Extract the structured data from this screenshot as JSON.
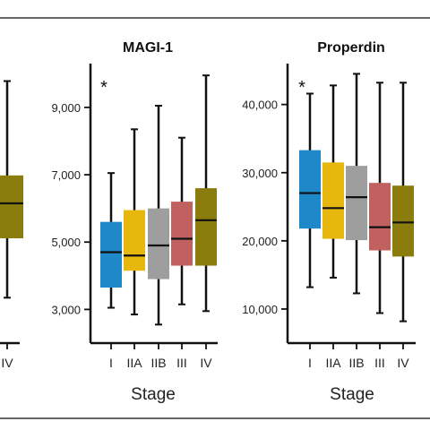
{
  "chart_data": [
    {
      "type": "box",
      "title": "",
      "xlabel": "",
      "categories": [
        "IV"
      ],
      "colors": [
        "#8b7d0d"
      ],
      "annotation": "",
      "boxes": [
        {
          "category": "IV",
          "min": 3600,
          "q1": 5300,
          "median": 6300,
          "q3": 7100,
          "max": 9800
        }
      ],
      "ylim": [
        2300,
        10300
      ]
    },
    {
      "type": "box",
      "title": "MAGI-1",
      "xlabel": "Stage",
      "categories": [
        "I",
        "IIA",
        "IIB",
        "III",
        "IV"
      ],
      "colors": [
        "#1e88c8",
        "#e8b70f",
        "#9e9e9e",
        "#c0605f",
        "#8b7d0d"
      ],
      "annotation": "*",
      "yticks": [
        3000,
        5000,
        7000,
        9000
      ],
      "ytick_labels": [
        "3,000",
        "5,000",
        "7,000",
        "9,000"
      ],
      "ylim": [
        2000,
        10300
      ],
      "boxes": [
        {
          "category": "I",
          "min": 3050,
          "q1": 3650,
          "median": 4700,
          "q3": 5600,
          "max": 7050
        },
        {
          "category": "IIA",
          "min": 2850,
          "q1": 4150,
          "median": 4600,
          "q3": 5950,
          "max": 8350
        },
        {
          "category": "IIB",
          "min": 2550,
          "q1": 3900,
          "median": 4900,
          "q3": 6000,
          "max": 9050
        },
        {
          "category": "III",
          "min": 3150,
          "q1": 4300,
          "median": 5100,
          "q3": 6200,
          "max": 8100
        },
        {
          "category": "IV",
          "min": 2950,
          "q1": 4300,
          "median": 5650,
          "q3": 6600,
          "max": 9950
        }
      ]
    },
    {
      "type": "box",
      "title": "Properdin",
      "xlabel": "Stage",
      "categories": [
        "I",
        "IIA",
        "IIB",
        "III",
        "IV"
      ],
      "colors": [
        "#1e88c8",
        "#e8b70f",
        "#9e9e9e",
        "#c0605f",
        "#8b7d0d"
      ],
      "annotation": "*",
      "yticks": [
        10000,
        20000,
        30000,
        40000
      ],
      "ytick_labels": [
        "10,000",
        "20,000",
        "30,000",
        "40,000"
      ],
      "ylim": [
        5000,
        46000
      ],
      "boxes": [
        {
          "category": "I",
          "min": 13200,
          "q1": 21800,
          "median": 27000,
          "q3": 33300,
          "max": 41600
        },
        {
          "category": "IIA",
          "min": 14600,
          "q1": 20300,
          "median": 24800,
          "q3": 31500,
          "max": 42800
        },
        {
          "category": "IIB",
          "min": 12300,
          "q1": 20100,
          "median": 26400,
          "q3": 31000,
          "max": 44500
        },
        {
          "category": "III",
          "min": 9400,
          "q1": 18600,
          "median": 22000,
          "q3": 28500,
          "max": 43200
        },
        {
          "category": "IV",
          "min": 8200,
          "q1": 17700,
          "median": 22700,
          "q3": 28100,
          "max": 43200
        }
      ]
    }
  ]
}
